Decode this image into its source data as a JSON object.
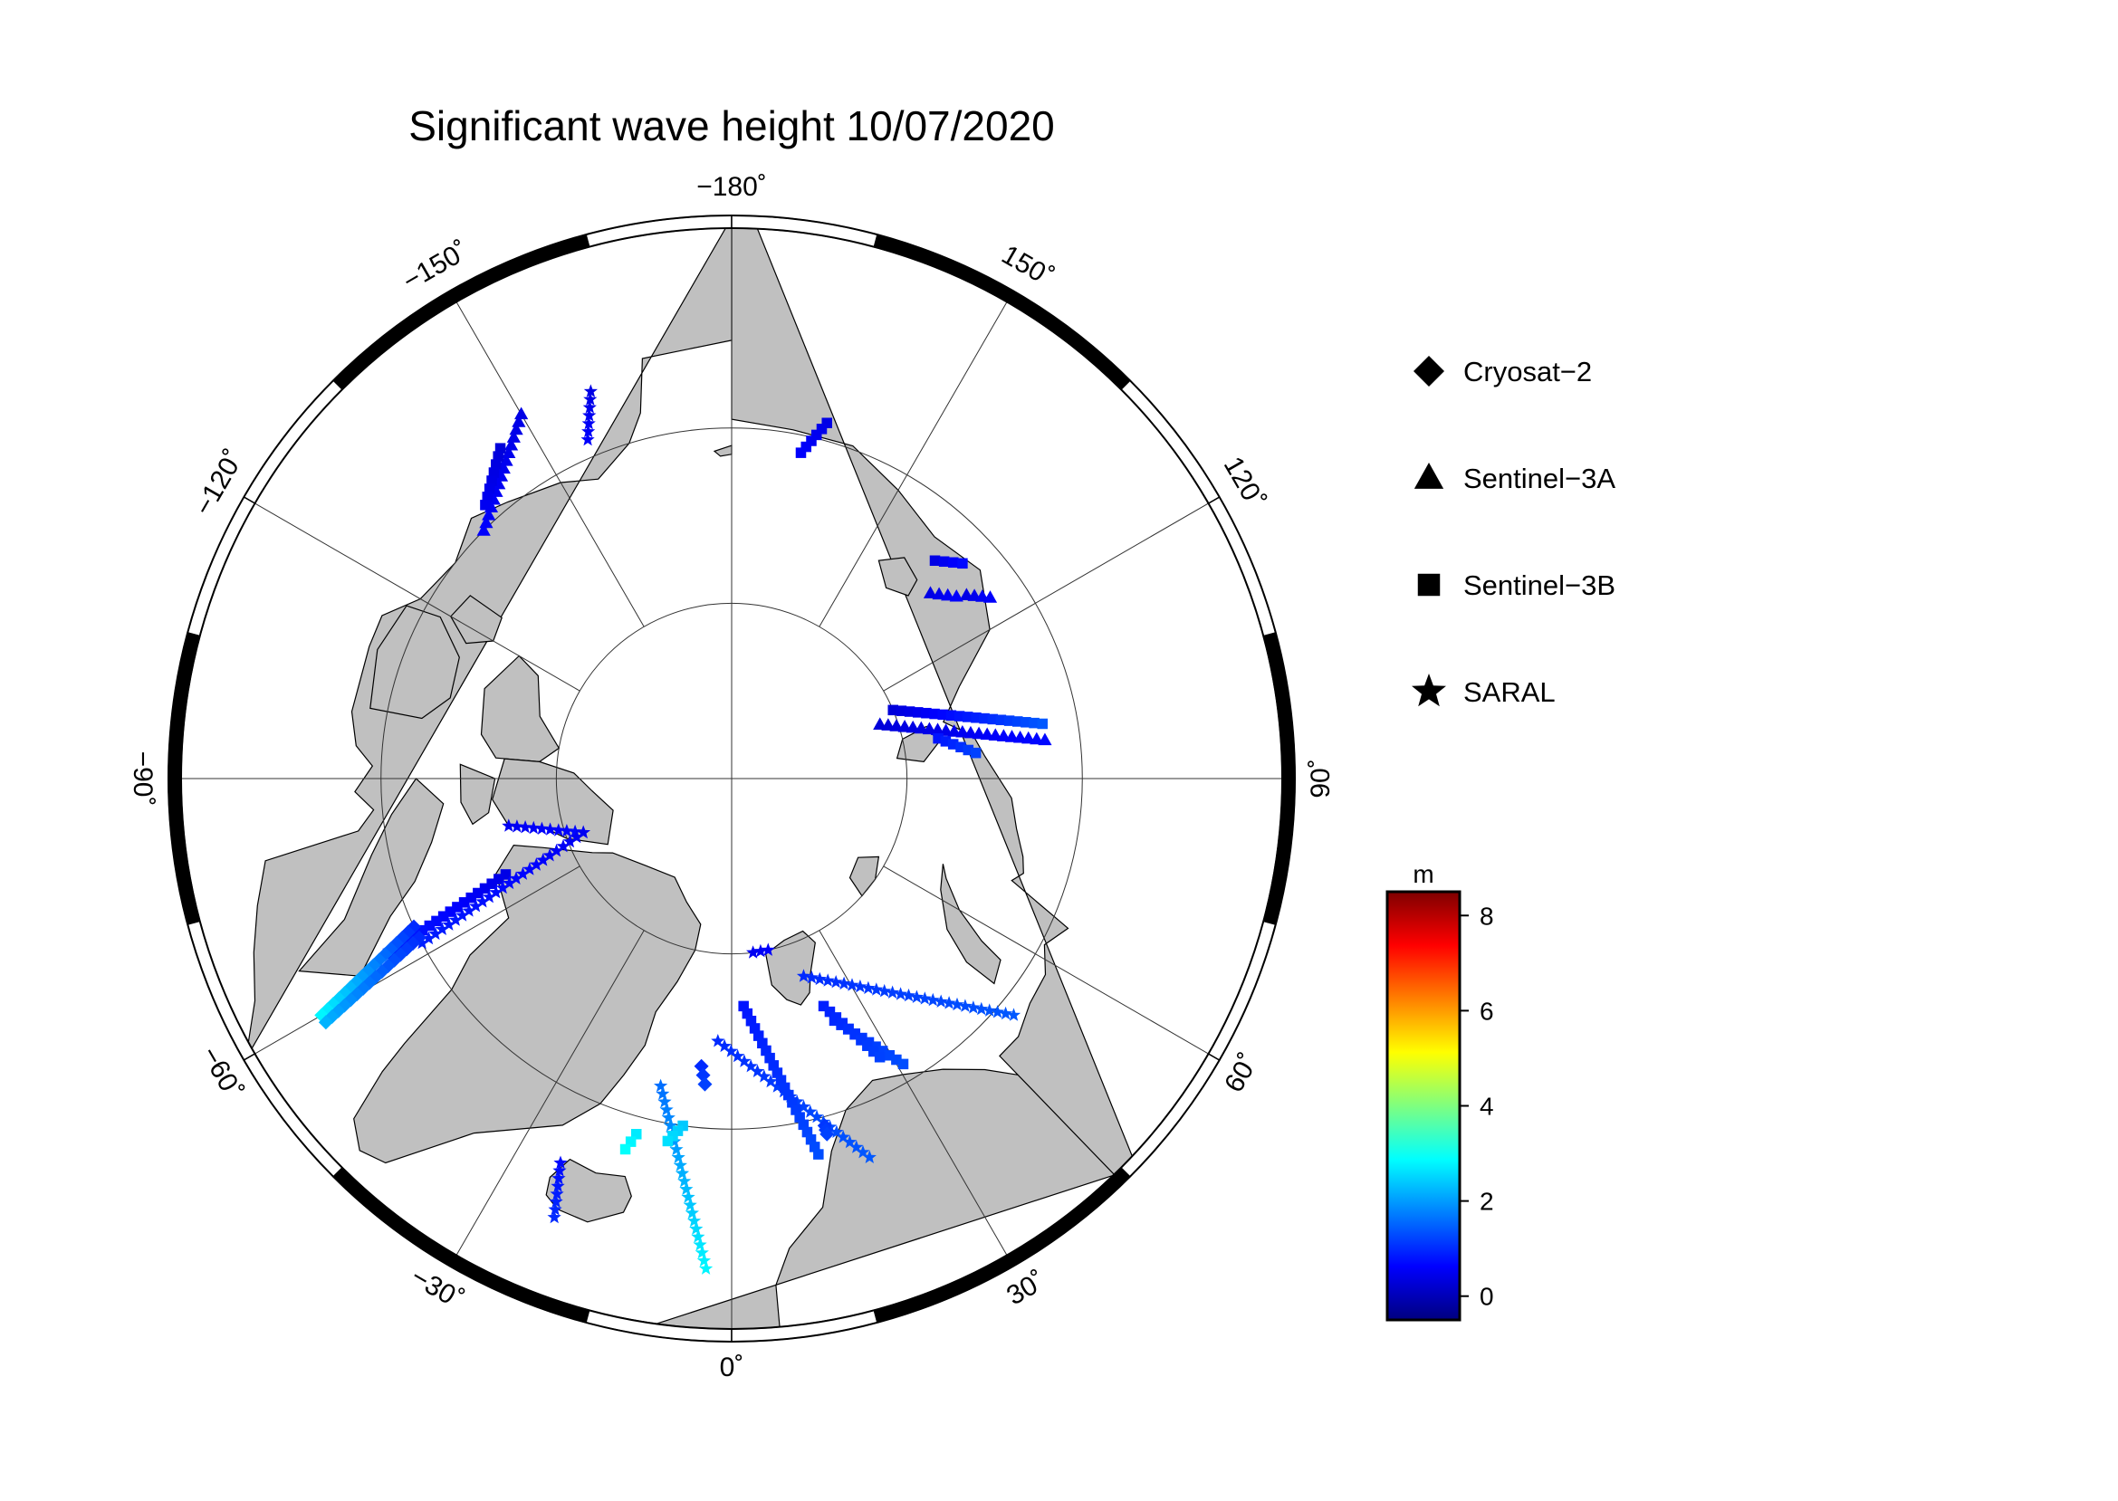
{
  "title": "Significant wave height 10/07/2020",
  "longitude_labels": [
    {
      "lon": 180,
      "text": "−180˚"
    },
    {
      "lon": 150,
      "text": "150˚"
    },
    {
      "lon": 120,
      "text": "120˚"
    },
    {
      "lon": 90,
      "text": "90˚"
    },
    {
      "lon": 60,
      "text": "60˚"
    },
    {
      "lon": 30,
      "text": "30˚"
    },
    {
      "lon": 0,
      "text": "0˚"
    },
    {
      "lon": -30,
      "text": "−30˚"
    },
    {
      "lon": -60,
      "text": "−60˚"
    },
    {
      "lon": -90,
      "text": "−90˚"
    },
    {
      "lon": -120,
      "text": "−120˚"
    },
    {
      "lon": -150,
      "text": "−150˚"
    }
  ],
  "legend": [
    {
      "label": "Cryosat−2",
      "symbol": "diamond"
    },
    {
      "label": "Sentinel−3A",
      "symbol": "triangle"
    },
    {
      "label": "Sentinel−3B",
      "symbol": "square"
    },
    {
      "label": "SARAL",
      "symbol": "star"
    }
  ],
  "colorbar": {
    "unit": "m",
    "min": -0.5,
    "max": 8.5,
    "ticks": [
      0,
      2,
      4,
      6,
      8
    ],
    "colormap": "jet"
  },
  "colors": {
    "land": "#c0c0c0",
    "ocean": "#ffffff",
    "coast": "#000000",
    "grid": "#333333"
  },
  "tracks": [
    {
      "satellite": "Sentinel-3A",
      "symbol": "triangle",
      "from": [
        -150,
        66
      ],
      "to": [
        -135,
        70
      ],
      "swh": [
        0.4,
        0.6
      ]
    },
    {
      "satellite": "Sentinel-3B",
      "symbol": "square",
      "from": [
        -145,
        67
      ],
      "to": [
        -138,
        69
      ],
      "swh": [
        0.3,
        0.5
      ]
    },
    {
      "satellite": "SARAL",
      "symbol": "star",
      "from": [
        -160,
        66.5
      ],
      "to": [
        -157,
        69
      ],
      "swh": [
        0.4,
        0.6
      ]
    },
    {
      "satellite": "Sentinel-3B",
      "symbol": "square",
      "from": [
        165,
        69
      ],
      "to": [
        168,
        71
      ],
      "swh": [
        0.4,
        0.6
      ]
    },
    {
      "satellite": "Sentinel-3B",
      "symbol": "square",
      "from": [
        137,
        73
      ],
      "to": [
        133,
        72
      ],
      "swh": [
        0.4,
        0.7
      ]
    },
    {
      "satellite": "Sentinel-3A",
      "symbol": "triangle",
      "from": [
        128,
        73
      ],
      "to": [
        125,
        72
      ],
      "swh": [
        0.4,
        0.6
      ]
    },
    {
      "satellite": "Sentinel-3A",
      "symbol": "triangle",
      "from": [
        133,
        74.5
      ],
      "to": [
        129,
        73.5
      ],
      "swh": [
        0.4,
        0.6
      ]
    },
    {
      "satellite": "Sentinel-3B",
      "symbol": "square",
      "from": [
        113,
        80
      ],
      "to": [
        100,
        72
      ],
      "swh": [
        0.3,
        1.4
      ]
    },
    {
      "satellite": "Sentinel-3A",
      "symbol": "triangle",
      "from": [
        110,
        81
      ],
      "to": [
        97,
        72
      ],
      "swh": [
        0.3,
        0.7
      ]
    },
    {
      "satellite": "Sentinel-3B",
      "symbol": "square",
      "from": [
        101,
        78
      ],
      "to": [
        96,
        76
      ],
      "swh": [
        0.8,
        1.2
      ]
    },
    {
      "satellite": "SARAL",
      "symbol": "star",
      "from": [
        -78,
        77
      ],
      "to": [
        -70,
        81
      ],
      "swh": [
        0.5,
        0.7
      ]
    },
    {
      "satellite": "Sentinel-3B",
      "symbol": "square",
      "from": [
        -67,
        76
      ],
      "to": [
        -63,
        68
      ],
      "swh": [
        0.4,
        0.9
      ]
    },
    {
      "satellite": "SARAL",
      "symbol": "star",
      "from": [
        -70,
        81
      ],
      "to": [
        -62,
        70
      ],
      "swh": [
        0.5,
        0.9
      ]
    },
    {
      "satellite": "Cryosat-2",
      "symbol": "diamond",
      "from": [
        -65,
        70
      ],
      "to": [
        -60,
        63
      ],
      "swh": [
        1.0,
        2.8
      ]
    },
    {
      "satellite": "Cryosat-2",
      "symbol": "diamond",
      "from": [
        -63,
        70
      ],
      "to": [
        -59,
        63
      ],
      "swh": [
        1.0,
        2.2
      ]
    },
    {
      "satellite": "SARAL",
      "symbol": "star",
      "from": [
        -24,
        66
      ],
      "to": [
        -22,
        63
      ],
      "swh": [
        0.7,
        1.0
      ]
    },
    {
      "satellite": "SARAL",
      "symbol": "star",
      "from": [
        -13,
        72
      ],
      "to": [
        -3,
        62
      ],
      "swh": [
        1.6,
        2.8
      ]
    },
    {
      "satellite": "Sentinel-3B",
      "symbol": "square",
      "from": [
        -8,
        70
      ],
      "to": [
        -10,
        69
      ],
      "swh": [
        2.4,
        2.6
      ]
    },
    {
      "satellite": "Sentinel-3B",
      "symbol": "square",
      "from": [
        -15,
        69
      ],
      "to": [
        -16,
        68
      ],
      "swh": [
        2.7,
        2.9
      ]
    },
    {
      "satellite": "Cryosat-2",
      "symbol": "diamond",
      "from": [
        -6,
        73.5
      ],
      "to": [
        -5,
        72.5
      ],
      "swh": [
        1.0,
        1.2
      ]
    },
    {
      "satellite": "SARAL",
      "symbol": "star",
      "from": [
        -3,
        75
      ],
      "to": [
        20,
        67
      ],
      "swh": [
        1.0,
        1.4
      ]
    },
    {
      "satellite": "Sentinel-3B",
      "symbol": "square",
      "from": [
        3,
        77
      ],
      "to": [
        13,
        68
      ],
      "swh": [
        0.8,
        1.3
      ]
    },
    {
      "satellite": "SARAL",
      "symbol": "star",
      "from": [
        7,
        80
      ],
      "to": [
        12,
        80
      ],
      "swh": [
        0.5,
        0.6
      ]
    },
    {
      "satellite": "SARAL",
      "symbol": "star",
      "from": [
        20,
        78
      ],
      "to": [
        50,
        69
      ],
      "swh": [
        1.0,
        1.4
      ]
    },
    {
      "satellite": "Sentinel-3B",
      "symbol": "square",
      "from": [
        23,
        75
      ],
      "to": [
        31,
        71
      ],
      "swh": [
        1.0,
        1.3
      ]
    },
    {
      "satellite": "Sentinel-3B",
      "symbol": "square",
      "from": [
        22,
        76
      ],
      "to": [
        28,
        72
      ],
      "swh": [
        0.9,
        1.2
      ]
    },
    {
      "satellite": "Cryosat-2",
      "symbol": "diamond",
      "from": [
        15,
        69.5
      ],
      "to": [
        15,
        69
      ],
      "swh": [
        1.1,
        1.2
      ]
    }
  ]
}
